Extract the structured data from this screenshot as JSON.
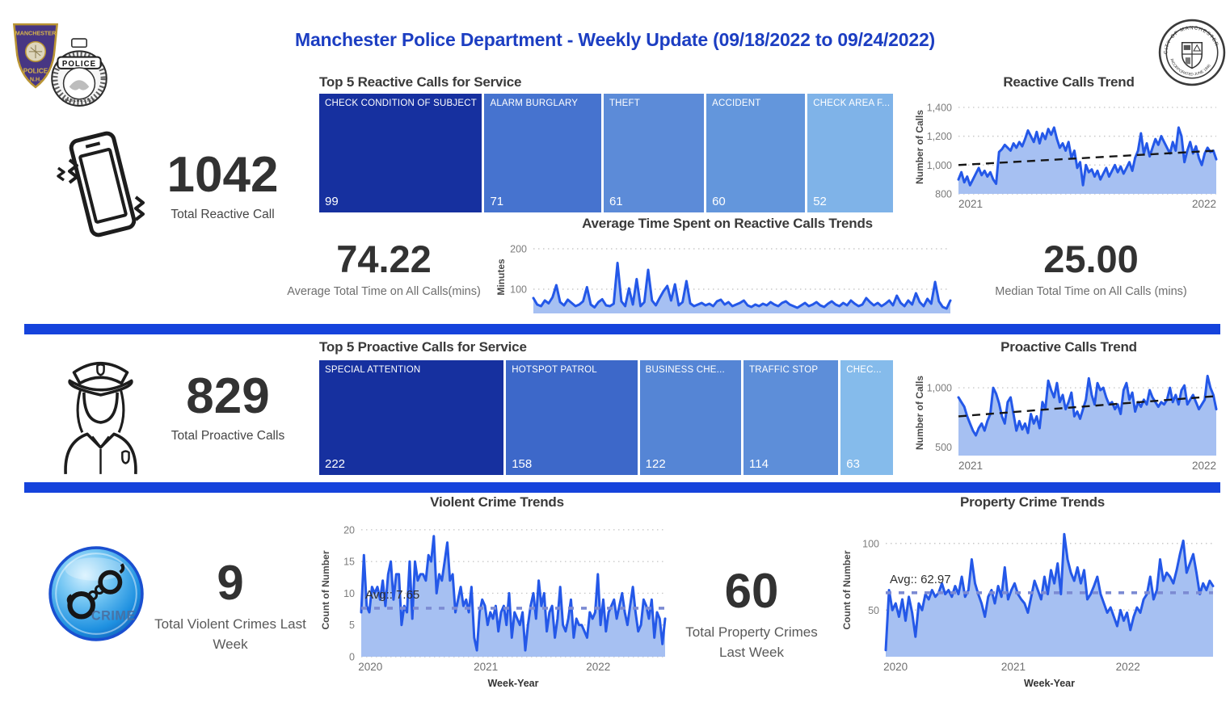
{
  "page": {
    "title": "Manchester Police Department - Weekly Update (09/18/2022 to 09/24/2022)"
  },
  "logos": {
    "patch": {
      "line1": "MANCHESTER",
      "line2": "POLICE",
      "line3": "N.H."
    },
    "badge": {
      "banner": "POLICE",
      "bottom": "MANCHESTER"
    },
    "seal": {
      "top": "CITY OF MANCHESTER",
      "bottom": "INCORPORATED JUNE 1846"
    }
  },
  "colors": {
    "accent": "#1543DC",
    "title": "#1C3EC2",
    "line": "#2458E8",
    "area": "#A6C0F2",
    "trend": "#161616",
    "avg_line": "#7C8BD3"
  },
  "reactive": {
    "kpi": {
      "value": "1042",
      "label": "Total Reactive Call"
    },
    "treemap_title": "Top 5 Reactive Calls for Service",
    "treemap": {
      "items": [
        {
          "label": "CHECK CONDITION OF SUBJECT",
          "value": 99
        },
        {
          "label": "ALARM BURGLARY",
          "value": 71
        },
        {
          "label": "THEFT",
          "value": 61
        },
        {
          "label": "ACCIDENT",
          "value": 60
        },
        {
          "label": "CHECK AREA F...",
          "value": 52
        }
      ],
      "colors": [
        "#16309F",
        "#4673CF",
        "#5C8BD8",
        "#6396DC",
        "#7FB3E8"
      ]
    },
    "avg_kpi": {
      "value": "74.22",
      "label": "Average Total Time on All Calls(mins)"
    },
    "median_kpi": {
      "value": "25.00",
      "label": "Median Total Time on All Calls (mins)"
    }
  },
  "proactive": {
    "kpi": {
      "value": "829",
      "label": "Total Proactive Calls"
    },
    "treemap_title": "Top 5 Proactive Calls for Service",
    "treemap": {
      "items": [
        {
          "label": "SPECIAL ATTENTION",
          "value": 222
        },
        {
          "label": "HOTSPOT PATROL",
          "value": 158
        },
        {
          "label": "BUSINESS CHE...",
          "value": 122
        },
        {
          "label": "TRAFFIC STOP",
          "value": 114
        },
        {
          "label": "CHEC...",
          "value": 63
        }
      ],
      "colors": [
        "#16309F",
        "#3D68C9",
        "#5585D5",
        "#5D8ED9",
        "#85BBEB"
      ]
    }
  },
  "crime": {
    "violent_kpi": {
      "value": "9",
      "label": "Total Violent Crimes Last Week"
    },
    "property_kpi": {
      "value": "60",
      "label": "Total Property Crimes Last Week"
    },
    "icon_text": "CRIME"
  },
  "chart_data": [
    {
      "id": "reactive-trend",
      "type": "area",
      "title": "Reactive Calls Trend",
      "ylabel": "Number of Calls",
      "ylim": [
        800,
        1450
      ],
      "yticks": [
        800,
        1000,
        1200,
        1400
      ],
      "ytick_labels": [
        "800",
        "1,000",
        "1,200",
        "1,400"
      ],
      "xticks": [
        {
          "label": "2021",
          "pos": 0.0,
          "anchor": "start"
        },
        {
          "label": "2022",
          "pos": 1.0,
          "anchor": "end"
        }
      ],
      "trend": [
        1000,
        1100
      ],
      "values": [
        900,
        950,
        880,
        920,
        860,
        900,
        940,
        980,
        930,
        960,
        920,
        950,
        900,
        870,
        1090,
        1110,
        1140,
        1120,
        1100,
        1150,
        1120,
        1160,
        1130,
        1180,
        1240,
        1200,
        1160,
        1230,
        1150,
        1220,
        1180,
        1250,
        1210,
        1260,
        1180,
        1120,
        1150,
        1100,
        1160,
        1050,
        1100,
        980,
        1020,
        860,
        1000,
        950,
        970,
        920,
        960,
        900,
        940,
        980,
        920,
        960,
        1000,
        950,
        990,
        940,
        980,
        1020,
        960,
        1050,
        1100,
        1220,
        1080,
        1150,
        1060,
        1120,
        1180,
        1140,
        1200,
        1160,
        1120,
        1080,
        1160,
        1100,
        1260,
        1200,
        1020,
        1100,
        1160,
        1080,
        1130,
        1050,
        1000,
        1080,
        1120,
        1090,
        1100,
        1040
      ]
    },
    {
      "id": "avg-time-trend",
      "type": "area",
      "title": "Average Time Spent on Reactive Calls Trends",
      "ylabel": "Minutes",
      "ylim": [
        40,
        220
      ],
      "yticks": [
        100,
        200
      ],
      "ytick_labels": [
        "100",
        "200"
      ],
      "xticks": [],
      "values": [
        78,
        62,
        58,
        72,
        65,
        80,
        110,
        68,
        60,
        74,
        66,
        58,
        62,
        70,
        105,
        62,
        55,
        68,
        75,
        60,
        58,
        64,
        165,
        70,
        58,
        102,
        62,
        125,
        58,
        68,
        148,
        72,
        60,
        78,
        95,
        108,
        72,
        112,
        60,
        68,
        120,
        65,
        58,
        62,
        66,
        60,
        64,
        58,
        70,
        74,
        62,
        68,
        58,
        62,
        66,
        72,
        60,
        56,
        62,
        58,
        64,
        60,
        68,
        62,
        58,
        66,
        70,
        62,
        58,
        54,
        60,
        66,
        58,
        62,
        68,
        60,
        56,
        64,
        70,
        62,
        58,
        66,
        60,
        72,
        64,
        58,
        62,
        78,
        68,
        60,
        66,
        58,
        64,
        72,
        60,
        84,
        66,
        58,
        72,
        62,
        90,
        68,
        58,
        76,
        64,
        118,
        70,
        56,
        52,
        72
      ]
    },
    {
      "id": "proactive-trend",
      "type": "area",
      "title": "Proactive Calls Trend",
      "ylabel": "Number of Calls",
      "ylim": [
        430,
        1150
      ],
      "yticks": [
        500,
        1000
      ],
      "ytick_labels": [
        "500",
        "1,000"
      ],
      "xticks": [
        {
          "label": "2021",
          "pos": 0.0,
          "anchor": "start"
        },
        {
          "label": "2022",
          "pos": 1.0,
          "anchor": "end"
        }
      ],
      "trend": [
        760,
        930
      ],
      "values": [
        920,
        880,
        840,
        760,
        700,
        640,
        600,
        660,
        700,
        640,
        720,
        780,
        1000,
        950,
        870,
        760,
        700,
        880,
        920,
        780,
        640,
        720,
        650,
        700,
        620,
        780,
        700,
        760,
        660,
        880,
        820,
        1060,
        980,
        920,
        1040,
        880,
        940,
        820,
        880,
        960,
        760,
        800,
        740,
        820,
        900,
        1080,
        940,
        860,
        1040,
        980,
        1000,
        920,
        860,
        880,
        820,
        860,
        780,
        980,
        1040,
        900,
        960,
        800,
        880,
        840,
        900,
        860,
        980,
        920,
        880,
        840,
        880,
        860,
        900,
        1000,
        880,
        940,
        860,
        980,
        1020,
        860,
        900,
        940,
        880,
        820,
        860,
        900,
        1100,
        1000,
        940,
        820
      ]
    },
    {
      "id": "violent-trend",
      "type": "area",
      "title": "Violent Crime Trends",
      "ylabel": "Count of Number",
      "xlabel": "Week-Year",
      "ylim": [
        0,
        21
      ],
      "yticks": [
        0,
        5,
        10,
        15,
        20
      ],
      "ytick_labels": [
        "0",
        "5",
        "10",
        "15",
        "20"
      ],
      "avg": 7.65,
      "avg_label": "Avg:: 7.65",
      "xticks": [
        {
          "label": "2020",
          "pos": 0.03,
          "anchor": "middle"
        },
        {
          "label": "2021",
          "pos": 0.41,
          "anchor": "middle"
        },
        {
          "label": "2022",
          "pos": 0.78,
          "anchor": "middle"
        }
      ],
      "values": [
        7,
        16,
        8,
        7,
        11,
        10,
        11,
        9,
        12,
        8,
        13,
        15,
        9,
        13,
        13,
        5,
        8,
        7,
        15,
        6,
        15,
        12,
        13,
        13,
        12,
        16,
        15,
        19,
        10,
        13,
        12,
        15,
        18,
        12,
        13,
        7,
        9,
        11,
        8,
        9,
        7,
        11,
        3,
        1,
        7,
        9,
        8,
        5,
        7,
        6,
        8,
        4,
        7,
        8,
        5,
        10,
        3,
        7,
        6,
        5,
        7,
        1,
        5,
        8,
        10,
        6,
        12,
        8,
        10,
        4,
        7,
        8,
        3,
        6,
        11,
        5,
        4,
        6,
        9,
        3,
        6,
        5,
        5,
        4,
        3,
        7,
        6,
        7,
        13,
        5,
        9,
        4,
        7,
        8,
        9,
        6,
        8,
        10,
        7,
        5,
        8,
        11,
        7,
        4,
        5,
        9,
        8,
        6,
        9,
        3,
        7,
        6,
        2,
        6
      ]
    },
    {
      "id": "property-trend",
      "type": "area",
      "title": "Property Crime Trends",
      "ylabel": "Count of Number",
      "xlabel": "Week-Year",
      "ylim": [
        15,
        115
      ],
      "yticks": [
        50,
        100
      ],
      "ytick_labels": [
        "50",
        "100"
      ],
      "avg": 62.97,
      "avg_label": "Avg:: 62.97",
      "xticks": [
        {
          "label": "2020",
          "pos": 0.03,
          "anchor": "middle"
        },
        {
          "label": "2021",
          "pos": 0.39,
          "anchor": "middle"
        },
        {
          "label": "2022",
          "pos": 0.74,
          "anchor": "middle"
        }
      ],
      "values": [
        20,
        65,
        50,
        55,
        45,
        58,
        42,
        60,
        48,
        30,
        55,
        50,
        62,
        58,
        65,
        60,
        63,
        70,
        62,
        65,
        60,
        68,
        62,
        75,
        60,
        65,
        88,
        70,
        62,
        55,
        45,
        60,
        65,
        55,
        68,
        60,
        82,
        58,
        65,
        70,
        62,
        58,
        55,
        48,
        60,
        72,
        65,
        58,
        75,
        62,
        80,
        70,
        85,
        62,
        107,
        88,
        78,
        72,
        82,
        70,
        80,
        58,
        62,
        68,
        75,
        62,
        55,
        48,
        52,
        45,
        38,
        50,
        42,
        48,
        35,
        45,
        52,
        48,
        58,
        62,
        75,
        58,
        65,
        88,
        72,
        78,
        75,
        70,
        80,
        92,
        102,
        78,
        85,
        92,
        78,
        62,
        70,
        65,
        72,
        68
      ]
    }
  ]
}
